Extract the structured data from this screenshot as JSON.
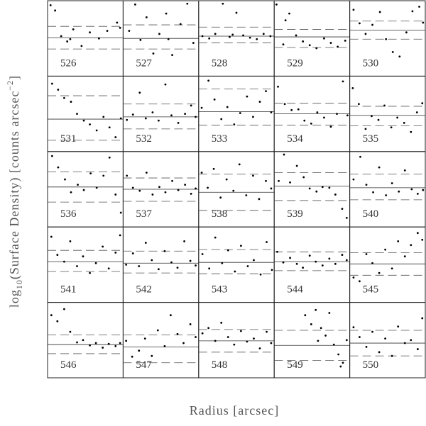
{
  "chart_data": {
    "type": "scatter",
    "xlabel": "Radius [arcsec]",
    "ylabel": {
      "pre": "log",
      "sub": "10",
      "mid": "(Surface Density) [counts arcsec",
      "sup": "−2",
      "post": "]"
    },
    "xlim": [
      0,
      10
    ],
    "ylim": [
      0,
      10
    ],
    "color": "#000000",
    "panels": [
      {
        "label": "526",
        "mean": 5.1,
        "upper": 6.6,
        "lower": 3.6,
        "x": [
          0.4,
          1.0,
          1.8,
          2.6,
          3.4,
          4.5,
          5.6,
          6.8,
          7.9,
          9.2,
          9.6,
          3.0
        ],
        "y": [
          9.4,
          8.7,
          5.3,
          4.6,
          6.2,
          4.0,
          5.8,
          5.0,
          6.0,
          7.1,
          6.4,
          4.9
        ]
      },
      {
        "label": "527",
        "mean": 5.0,
        "upper": 6.8,
        "lower": 3.6,
        "x": [
          0.8,
          1.6,
          2.3,
          3.1,
          4.0,
          4.8,
          5.7,
          6.5,
          7.6,
          8.5,
          9.3,
          6.0
        ],
        "y": [
          6.0,
          9.5,
          4.8,
          7.8,
          3.0,
          5.6,
          8.3,
          2.8,
          6.9,
          9.6,
          4.4,
          4.9
        ]
      },
      {
        "label": "528",
        "mean": 5.3,
        "upper": 6.5,
        "lower": 4.4,
        "x": [
          0.5,
          1.4,
          2.2,
          3.2,
          4.1,
          5.0,
          5.9,
          6.8,
          7.7,
          8.6,
          9.5,
          4.5
        ],
        "y": [
          5.3,
          5.0,
          5.6,
          9.6,
          5.2,
          8.4,
          5.4,
          5.1,
          4.9,
          5.6,
          5.3,
          5.5
        ]
      },
      {
        "label": "529",
        "mean": 5.2,
        "upper": 6.2,
        "lower": 3.8,
        "x": [
          0.3,
          1.2,
          2.0,
          2.9,
          3.8,
          4.7,
          5.6,
          6.6,
          7.5,
          8.4,
          9.4,
          1.5
        ],
        "y": [
          9.5,
          4.2,
          8.3,
          5.4,
          4.6,
          4.1,
          3.7,
          5.0,
          4.4,
          3.9,
          4.7,
          7.4
        ]
      },
      {
        "label": "530",
        "mean": 6.1,
        "upper": 7.3,
        "lower": 4.9,
        "x": [
          0.5,
          1.3,
          2.1,
          3.0,
          4.0,
          4.8,
          5.7,
          6.6,
          7.5,
          8.3,
          9.2,
          9.7
        ],
        "y": [
          8.8,
          7.0,
          5.6,
          6.8,
          8.5,
          4.9,
          3.2,
          2.6,
          5.8,
          8.6,
          9.2,
          7.1
        ]
      },
      {
        "label": "531",
        "mean": 4.3,
        "upper": 7.4,
        "lower": 1.5,
        "x": [
          0.6,
          1.4,
          2.2,
          3.1,
          3.9,
          4.8,
          5.6,
          6.5,
          7.4,
          8.2,
          9.0,
          9.7
        ],
        "y": [
          9.0,
          8.2,
          7.1,
          6.6,
          5.0,
          4.1,
          3.6,
          2.8,
          4.6,
          3.2,
          1.9,
          4.4
        ]
      },
      {
        "label": "532",
        "mean": 4.6,
        "upper": 6.3,
        "lower": 3.0,
        "x": [
          0.5,
          1.3,
          2.2,
          3.0,
          3.9,
          4.7,
          5.6,
          6.4,
          7.3,
          8.2,
          9.0,
          9.6
        ],
        "y": [
          4.2,
          4.9,
          7.8,
          4.4,
          5.2,
          4.1,
          8.9,
          4.8,
          3.8,
          5.0,
          6.1,
          4.6
        ]
      },
      {
        "label": "533",
        "mean": 5.3,
        "upper": 8.3,
        "lower": 3.5,
        "x": [
          0.4,
          1.3,
          2.1,
          3.0,
          3.8,
          4.7,
          5.5,
          6.4,
          7.2,
          8.1,
          8.9,
          9.6
        ],
        "y": [
          5.8,
          9.4,
          6.9,
          4.3,
          5.9,
          3.6,
          5.1,
          7.3,
          4.6,
          6.6,
          8.0,
          5.2
        ]
      },
      {
        "label": "534",
        "mean": 5.0,
        "upper": 6.4,
        "lower": 3.5,
        "x": [
          0.5,
          1.4,
          2.3,
          3.2,
          4.0,
          4.9,
          5.7,
          6.6,
          7.5,
          8.3,
          9.1,
          9.7
        ],
        "y": [
          8.6,
          6.3,
          5.5,
          5.6,
          4.1,
          3.7,
          5.2,
          4.5,
          3.3,
          5.0,
          9.3,
          4.8
        ]
      },
      {
        "label": "535",
        "mean": 4.8,
        "upper": 6.0,
        "lower": 3.4,
        "x": [
          0.4,
          1.2,
          2.1,
          2.9,
          3.8,
          4.6,
          5.5,
          6.3,
          7.2,
          8.1,
          8.9,
          9.6
        ],
        "y": [
          8.4,
          6.3,
          3.0,
          4.7,
          4.2,
          6.1,
          3.2,
          4.5,
          3.8,
          2.6,
          5.2,
          6.4
        ]
      },
      {
        "label": "536",
        "mean": 5.3,
        "upper": 7.3,
        "lower": 3.3,
        "x": [
          0.6,
          1.4,
          2.3,
          3.1,
          4.0,
          4.8,
          5.7,
          6.5,
          7.4,
          8.2,
          9.0,
          9.7
        ],
        "y": [
          9.4,
          7.9,
          6.3,
          4.6,
          5.6,
          4.9,
          7.1,
          5.2,
          6.8,
          9.2,
          4.3,
          1.9
        ]
      },
      {
        "label": "537",
        "mean": 5.0,
        "upper": 6.5,
        "lower": 3.4,
        "x": [
          0.5,
          1.3,
          2.2,
          3.1,
          3.9,
          4.8,
          5.6,
          6.5,
          7.3,
          8.2,
          9.0,
          9.6
        ],
        "y": [
          6.8,
          5.2,
          4.8,
          7.2,
          4.3,
          5.3,
          4.6,
          6.1,
          4.9,
          5.6,
          4.4,
          5.1
        ]
      },
      {
        "label": "538",
        "mean": 4.6,
        "upper": 7.0,
        "lower": 2.2,
        "x": [
          0.4,
          1.2,
          2.0,
          2.9,
          3.7,
          4.6,
          5.4,
          6.3,
          7.2,
          8.0,
          8.9,
          9.6
        ],
        "y": [
          7.2,
          5.2,
          7.7,
          3.9,
          6.3,
          4.8,
          8.3,
          4.2,
          6.8,
          3.7,
          6.1,
          5.1
        ]
      },
      {
        "label": "539",
        "mean": 5.4,
        "upper": 7.2,
        "lower": 3.5,
        "x": [
          0.6,
          1.3,
          2.1,
          3.0,
          3.9,
          4.7,
          5.6,
          6.4,
          7.3,
          8.1,
          9.0,
          9.6
        ],
        "y": [
          6.1,
          9.6,
          5.9,
          8.1,
          6.6,
          5.1,
          4.7,
          5.3,
          5.2,
          4.3,
          2.4,
          1.2
        ]
      },
      {
        "label": "540",
        "mean": 5.2,
        "upper": 7.0,
        "lower": 3.6,
        "x": [
          0.5,
          1.4,
          2.2,
          3.1,
          3.9,
          4.8,
          5.6,
          6.5,
          7.3,
          8.2,
          9.0,
          9.7
        ],
        "y": [
          6.3,
          9.3,
          5.6,
          4.6,
          7.9,
          4.2,
          5.8,
          4.7,
          7.5,
          5.0,
          4.4,
          4.9
        ]
      },
      {
        "label": "541",
        "mean": 5.4,
        "upper": 6.9,
        "lower": 4.1,
        "x": [
          0.5,
          1.3,
          2.2,
          3.0,
          3.9,
          4.7,
          5.6,
          6.4,
          7.3,
          8.1,
          9.0,
          9.6
        ],
        "y": [
          8.7,
          6.3,
          5.4,
          8.1,
          4.8,
          6.1,
          3.9,
          5.2,
          7.4,
          4.5,
          6.6,
          8.9
        ]
      },
      {
        "label": "542",
        "mean": 5.2,
        "upper": 6.8,
        "lower": 3.9,
        "x": [
          0.4,
          1.3,
          2.1,
          3.0,
          3.8,
          4.7,
          5.5,
          6.4,
          7.2,
          8.1,
          8.9,
          9.6
        ],
        "y": [
          5.0,
          6.5,
          4.8,
          7.9,
          5.6,
          4.4,
          6.8,
          5.3,
          4.6,
          8.1,
          5.5,
          4.9
        ]
      },
      {
        "label": "543",
        "mean": 5.3,
        "upper": 7.0,
        "lower": 3.8,
        "x": [
          0.5,
          1.4,
          2.2,
          3.1,
          3.9,
          4.8,
          5.6,
          6.5,
          7.3,
          8.2,
          9.0,
          9.7
        ],
        "y": [
          6.4,
          4.5,
          8.6,
          5.2,
          6.9,
          4.1,
          7.5,
          4.8,
          5.6,
          3.7,
          8.0,
          4.3
        ]
      },
      {
        "label": "544",
        "mean": 5.4,
        "upper": 6.7,
        "lower": 4.2,
        "x": [
          0.4,
          1.2,
          2.1,
          3.0,
          3.8,
          4.7,
          5.5,
          6.4,
          7.3,
          8.1,
          9.0,
          9.6
        ],
        "y": [
          6.7,
          5.3,
          5.9,
          5.1,
          4.6,
          6.2,
          5.4,
          4.9,
          5.8,
          5.1,
          6.3,
          5.6
        ]
      },
      {
        "label": "545",
        "mean": 5.1,
        "upper": 6.6,
        "lower": 3.6,
        "x": [
          0.5,
          1.3,
          2.2,
          3.0,
          3.9,
          4.7,
          5.6,
          6.4,
          7.3,
          8.1,
          9.0,
          9.6
        ],
        "y": [
          3.3,
          2.8,
          6.4,
          5.2,
          3.9,
          7.0,
          4.5,
          8.1,
          6.1,
          7.6,
          9.2,
          8.3
        ]
      },
      {
        "label": "546",
        "mean": 4.4,
        "upper": 5.7,
        "lower": 3.2,
        "x": [
          0.5,
          1.3,
          2.2,
          3.0,
          3.9,
          4.7,
          5.6,
          6.4,
          7.3,
          8.1,
          9.0,
          9.6
        ],
        "y": [
          8.3,
          7.5,
          9.1,
          6.1,
          4.7,
          5.0,
          4.3,
          4.6,
          4.0,
          4.5,
          4.2,
          4.6
        ]
      },
      {
        "label": "547",
        "mean": 4.1,
        "upper": 5.7,
        "lower": 2.0,
        "x": [
          0.4,
          1.2,
          2.1,
          2.9,
          3.8,
          4.6,
          5.5,
          6.3,
          7.2,
          8.0,
          8.9,
          9.6
        ],
        "y": [
          4.9,
          2.8,
          3.6,
          5.2,
          2.9,
          6.3,
          4.2,
          8.3,
          5.8,
          4.6,
          7.1,
          5.4
        ]
      },
      {
        "label": "548",
        "mean": 4.9,
        "upper": 6.4,
        "lower": 3.4,
        "x": [
          0.5,
          1.3,
          2.2,
          3.0,
          3.9,
          4.7,
          5.6,
          6.4,
          7.3,
          8.1,
          9.0,
          9.6
        ],
        "y": [
          5.9,
          6.6,
          4.9,
          7.3,
          5.4,
          4.4,
          6.2,
          4.8,
          5.2,
          3.9,
          6.1,
          4.6
        ]
      },
      {
        "label": "549",
        "mean": 4.3,
        "upper": 6.3,
        "lower": 2.3,
        "x": [
          4.1,
          4.9,
          5.5,
          6.2,
          6.8,
          7.3,
          7.9,
          8.5,
          9.1,
          9.6,
          5.8,
          8.8
        ],
        "y": [
          8.3,
          7.1,
          9.0,
          6.6,
          5.6,
          8.6,
          4.4,
          3.1,
          2.0,
          5.0,
          4.9,
          1.5
        ]
      },
      {
        "label": "550",
        "mean": 4.6,
        "upper": 6.3,
        "lower": 2.9,
        "x": [
          0.5,
          1.3,
          2.2,
          3.0,
          3.9,
          4.7,
          5.6,
          6.4,
          7.3,
          8.1,
          9.0,
          9.6
        ],
        "y": [
          6.7,
          5.4,
          4.1,
          6.1,
          3.4,
          5.2,
          2.9,
          6.8,
          4.6,
          5.0,
          3.8,
          7.9
        ]
      }
    ]
  }
}
